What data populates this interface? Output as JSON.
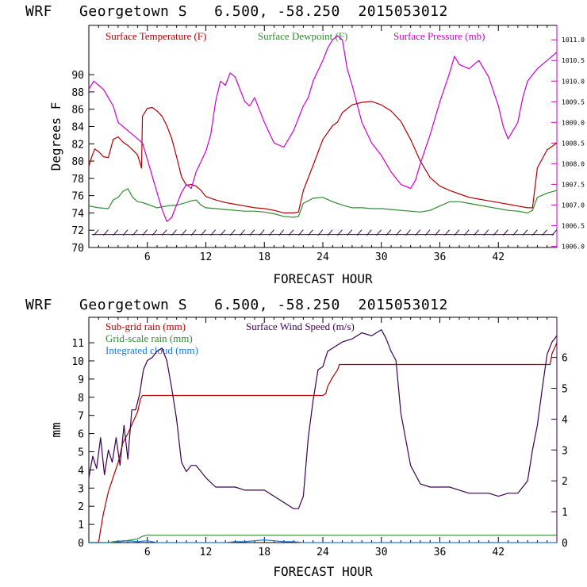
{
  "chart_data": [
    {
      "type": "line",
      "title": "WRF   Georgetown S   6.500, -58.250  2015053012",
      "xlabel": "FORECAST HOUR",
      "ylabel": "Degrees F",
      "xlim": [
        0,
        48
      ],
      "ylim": [
        70,
        95.7
      ],
      "y2lim": [
        1005.97,
        1011.35
      ],
      "xticks": [
        6,
        12,
        18,
        24,
        30,
        36,
        42
      ],
      "yticks": [
        70,
        72,
        74,
        76,
        78,
        80,
        82,
        84,
        86,
        88,
        90
      ],
      "y2ticks": [
        "1006.0",
        "1006.5",
        "1007.0",
        "1007.5",
        "1008.0",
        "1008.5",
        "1009.0",
        "1009.5",
        "1010.0",
        "1010.5",
        "1011.0"
      ],
      "grid": false,
      "legend_position": "top",
      "series": [
        {
          "name": "Surface Temperature (F)",
          "color": "#b00000",
          "axis": "left",
          "x": [
            0,
            0.3,
            0.6,
            1,
            1.5,
            2,
            2.5,
            3,
            3.5,
            4,
            4.5,
            5,
            5.4,
            5.5,
            6,
            6.5,
            7,
            7.5,
            8,
            8.5,
            9,
            9.5,
            10,
            10.5,
            11,
            11.5,
            12,
            13,
            14,
            15,
            16,
            17,
            18,
            19,
            20,
            21,
            21.5,
            22,
            23,
            24,
            25,
            25.5,
            26,
            27,
            28,
            29,
            30,
            31,
            32,
            33,
            34,
            35,
            36,
            37,
            38,
            39,
            40,
            41,
            42,
            43,
            44,
            45,
            45.5,
            46,
            47,
            48
          ],
          "y": [
            79.4,
            80.5,
            81.4,
            81.1,
            80.5,
            80.4,
            82.5,
            82.8,
            82.2,
            81.8,
            81.3,
            80.7,
            79.2,
            85.2,
            86.1,
            86.2,
            85.8,
            85.2,
            84.1,
            82.6,
            80.5,
            78.2,
            77.2,
            77.3,
            77.1,
            76.6,
            75.9,
            75.5,
            75.2,
            75.0,
            74.8,
            74.6,
            74.5,
            74.3,
            74.0,
            74.0,
            74.1,
            76.6,
            79.5,
            82.5,
            84.1,
            84.5,
            85.6,
            86.5,
            86.8,
            86.9,
            86.5,
            85.8,
            84.6,
            82.5,
            80.0,
            78.1,
            77.1,
            76.6,
            76.2,
            75.8,
            75.6,
            75.4,
            75.2,
            75.0,
            74.8,
            74.6,
            74.6,
            79.2,
            81.3,
            82.1
          ]
        },
        {
          "name": "Surface Dewpoint (F)",
          "color": "#2e8b2e",
          "axis": "left",
          "x": [
            0,
            1,
            2,
            2.5,
            3,
            3.5,
            4,
            4.5,
            5,
            5.5,
            6,
            7,
            8,
            9,
            10,
            10.5,
            11,
            11.5,
            12,
            13,
            14,
            15,
            16,
            17,
            18,
            19,
            20,
            21,
            21.5,
            22,
            23,
            24,
            25,
            26,
            27,
            28,
            29,
            30,
            31,
            32,
            33,
            34,
            35,
            36,
            37,
            38,
            39,
            40,
            41,
            42,
            43,
            44,
            45,
            45.5,
            46,
            47,
            48
          ],
          "y": [
            74.8,
            74.6,
            74.5,
            75.5,
            75.8,
            76.5,
            76.8,
            75.8,
            75.3,
            75.2,
            75.0,
            74.6,
            74.8,
            74.9,
            75.2,
            75.4,
            75.5,
            74.9,
            74.6,
            74.5,
            74.4,
            74.3,
            74.2,
            74.2,
            74.1,
            73.9,
            73.6,
            73.5,
            73.6,
            75.1,
            75.7,
            75.8,
            75.3,
            74.9,
            74.6,
            74.6,
            74.5,
            74.5,
            74.4,
            74.3,
            74.2,
            74.1,
            74.3,
            74.8,
            75.3,
            75.3,
            75.1,
            74.9,
            74.7,
            74.5,
            74.3,
            74.2,
            74.0,
            74.3,
            75.8,
            76.3,
            76.6
          ]
        },
        {
          "name": "Surface Pressure (mb)",
          "color": "#cc00cc",
          "axis": "right",
          "x": [
            0,
            0.5,
            1,
            1.5,
            2,
            2.5,
            3,
            4,
            5,
            5.5,
            6,
            7,
            7.5,
            8,
            8.5,
            9,
            9.5,
            10,
            10.5,
            11,
            12,
            12.5,
            13,
            13.5,
            14,
            14.5,
            15,
            16,
            16.5,
            17,
            18,
            19,
            20,
            21,
            22,
            22.5,
            23,
            24,
            24.5,
            25,
            25.5,
            26,
            26.5,
            27,
            28,
            29,
            30,
            31,
            32,
            33,
            33.5,
            34,
            35,
            36,
            37,
            37.5,
            38,
            39,
            40,
            41,
            42,
            42.5,
            43,
            44,
            44.5,
            45,
            46,
            47,
            48
          ],
          "y": [
            1009.8,
            1010.0,
            1009.9,
            1009.8,
            1009.6,
            1009.4,
            1009.0,
            1008.8,
            1008.6,
            1008.5,
            1008.1,
            1007.3,
            1006.9,
            1006.6,
            1006.7,
            1007.0,
            1007.3,
            1007.5,
            1007.4,
            1007.8,
            1008.3,
            1008.7,
            1009.5,
            1010.0,
            1009.9,
            1010.2,
            1010.1,
            1009.5,
            1009.4,
            1009.6,
            1009.0,
            1008.5,
            1008.4,
            1008.8,
            1009.4,
            1009.6,
            1010.0,
            1010.5,
            1010.8,
            1011.0,
            1011.1,
            1011.0,
            1010.3,
            1009.9,
            1009.0,
            1008.5,
            1008.2,
            1007.8,
            1007.5,
            1007.4,
            1007.6,
            1008.0,
            1008.7,
            1009.5,
            1010.2,
            1010.6,
            1010.4,
            1010.3,
            1010.5,
            1010.1,
            1009.4,
            1008.9,
            1008.6,
            1009.0,
            1009.6,
            1010.0,
            1010.3,
            1010.5,
            1010.7
          ]
        }
      ],
      "wind_barbs": true
    },
    {
      "type": "line",
      "title": "WRF   Georgetown S   6.500, -58.250  2015053012",
      "xlabel": "FORECAST HOUR",
      "ylabel": "mm",
      "xlim": [
        0,
        48
      ],
      "ylim": [
        0,
        12.4
      ],
      "y2lim": [
        0,
        7.3
      ],
      "xticks": [
        6,
        12,
        18,
        24,
        30,
        36,
        42
      ],
      "yticks": [
        0,
        1,
        2,
        3,
        4,
        5,
        6,
        7,
        8,
        9,
        10,
        11
      ],
      "y2ticks": [
        0,
        1,
        2,
        3,
        4,
        5,
        6
      ],
      "grid": false,
      "legend_position": "top-left",
      "series": [
        {
          "name": "Sub-grid rain (mm)",
          "color": "#b00000",
          "axis": "left",
          "x": [
            0,
            1,
            1.2,
            1.5,
            2,
            2.5,
            3,
            3.5,
            4,
            4.5,
            5,
            5.3,
            5.5,
            6,
            10,
            15,
            20,
            24,
            24.3,
            24.5,
            25,
            25.5,
            25.7,
            26,
            30,
            35,
            40,
            45,
            47.3,
            47.5,
            48
          ],
          "y": [
            0,
            0,
            0.7,
            1.6,
            2.8,
            3.6,
            4.4,
            5.5,
            6.0,
            6.6,
            7.2,
            7.9,
            8.1,
            8.1,
            8.1,
            8.1,
            8.1,
            8.1,
            8.2,
            8.6,
            9.1,
            9.5,
            9.8,
            9.8,
            9.8,
            9.8,
            9.8,
            9.8,
            9.8,
            10.4,
            11.0
          ]
        },
        {
          "name": "Grid-scale rain (mm)",
          "color": "#2e8b2e",
          "axis": "left",
          "x": [
            0,
            2,
            2.5,
            4,
            5,
            5.5,
            6,
            10,
            20,
            30,
            40,
            48
          ],
          "y": [
            0,
            0,
            0.05,
            0.12,
            0.2,
            0.35,
            0.4,
            0.4,
            0.4,
            0.4,
            0.4,
            0.4
          ]
        },
        {
          "name": "Integrated cloud (mm)",
          "color": "#1e78d2",
          "axis": "left",
          "x": [
            0,
            2,
            3,
            4,
            5,
            6,
            7,
            14,
            15,
            16,
            17,
            18,
            19,
            20,
            21,
            22,
            48
          ],
          "y": [
            0,
            0,
            0.05,
            0.1,
            0.05,
            0.1,
            0,
            0,
            0.05,
            0.05,
            0.1,
            0.15,
            0.1,
            0.05,
            0.05,
            0,
            0
          ]
        },
        {
          "name": "Surface Wind Speed (m/s)",
          "color": "#3a0050",
          "axis": "right",
          "x": [
            0,
            0.4,
            0.8,
            1.2,
            1.6,
            2,
            2.4,
            2.8,
            3.2,
            3.6,
            4,
            4.4,
            4.8,
            5.2,
            5.6,
            6,
            6.5,
            7,
            7.5,
            8,
            8.5,
            9,
            9.5,
            10,
            10.5,
            11,
            12,
            13,
            14,
            15,
            16,
            17,
            18,
            19,
            20,
            21,
            21.5,
            22,
            22.5,
            23,
            23.5,
            24,
            24.5,
            25,
            25.5,
            26,
            27,
            28,
            29,
            30,
            30.5,
            31,
            31.5,
            32,
            33,
            34,
            35,
            36,
            37,
            38,
            39,
            40,
            41,
            42,
            43,
            44,
            45,
            45.5,
            46,
            46.5,
            47,
            47.5,
            48
          ],
          "y": [
            2.1,
            2.8,
            2.4,
            3.4,
            2.2,
            3.0,
            2.6,
            3.4,
            2.5,
            3.8,
            2.7,
            4.3,
            4.3,
            4.8,
            5.6,
            5.9,
            6.0,
            6.2,
            6.3,
            5.9,
            5.0,
            4.0,
            2.6,
            2.3,
            2.5,
            2.5,
            2.1,
            1.8,
            1.8,
            1.8,
            1.7,
            1.7,
            1.7,
            1.5,
            1.3,
            1.1,
            1.1,
            1.5,
            3.4,
            4.6,
            5.6,
            5.7,
            6.2,
            6.3,
            6.4,
            6.5,
            6.6,
            6.8,
            6.7,
            6.9,
            6.6,
            6.2,
            5.9,
            4.2,
            2.5,
            1.9,
            1.8,
            1.8,
            1.8,
            1.7,
            1.6,
            1.6,
            1.6,
            1.5,
            1.6,
            1.6,
            2.0,
            3.0,
            3.8,
            5.0,
            6.1,
            6.5,
            6.7
          ]
        }
      ]
    }
  ]
}
